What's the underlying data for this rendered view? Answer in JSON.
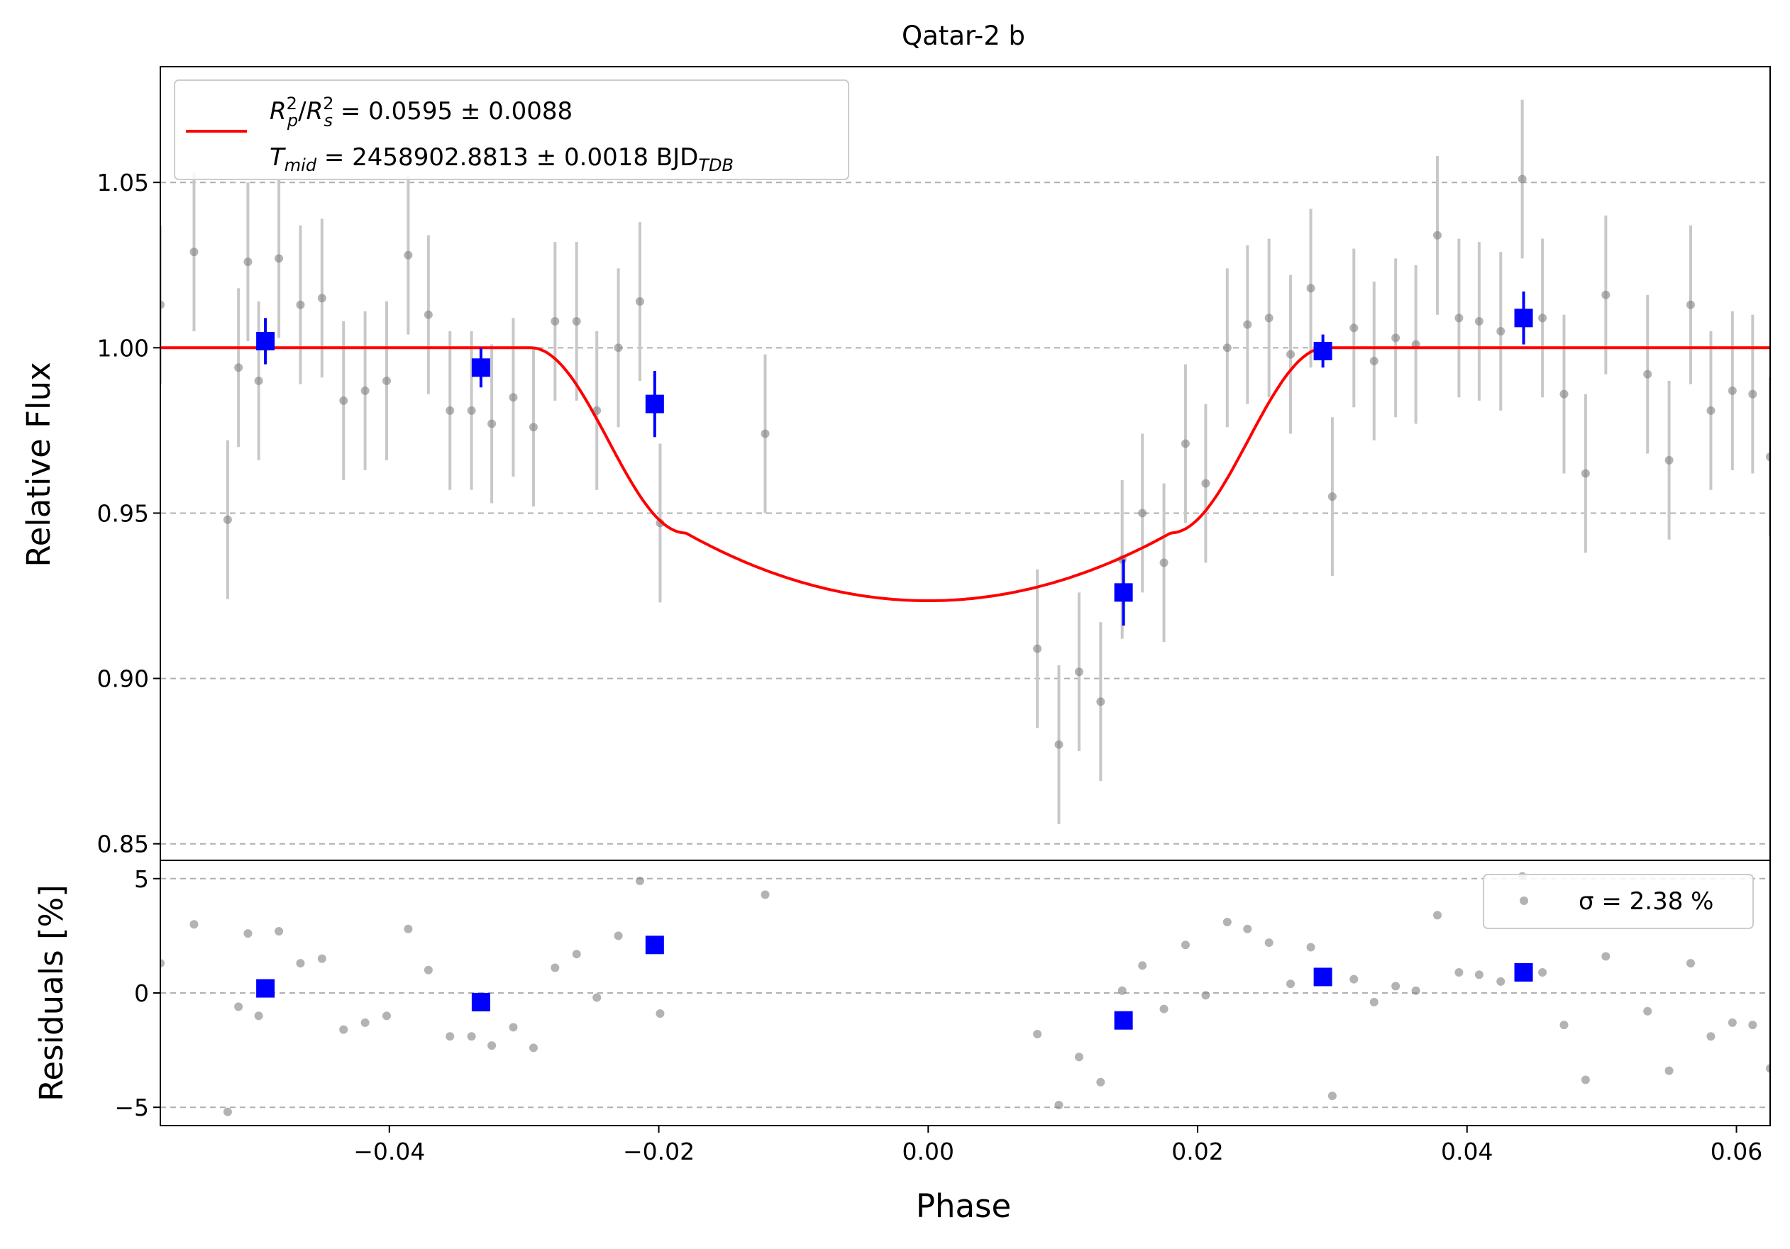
{
  "chart_data": {
    "type": "scatter",
    "title": "Qatar-2 b",
    "xlabel": "Phase",
    "xlim": [
      -0.057,
      0.0625
    ],
    "x_ticks": [
      -0.04,
      -0.02,
      0.0,
      0.02,
      0.04,
      0.06
    ],
    "x_tick_labels": [
      "−0.04",
      "−0.02",
      "0.00",
      "0.02",
      "0.04",
      "0.06"
    ],
    "grid": "horizontal dashed",
    "colors": {
      "raw": "#808080",
      "raw_err": "#c8c8c8",
      "binned": "#0000ff",
      "model": "#ff0000",
      "grid": "#b0b0b0"
    },
    "top_panel": {
      "ylabel": "Relative Flux",
      "ylim": [
        0.845,
        1.085
      ],
      "y_ticks": [
        0.85,
        0.9,
        0.95,
        1.0,
        1.05
      ],
      "y_tick_labels": [
        "0.85",
        "0.90",
        "0.95",
        "1.00",
        "1.05"
      ],
      "legend": {
        "position": "upper-left",
        "line1_main": "R²p/R²s = 0.0595 ± 0.0088",
        "line2_main": "Tmid = 2458902.8813 ± 0.0018 BJD",
        "line2_sub": "TDB"
      },
      "model": {
        "name": "transit model",
        "depth": 0.0595,
        "t1": -0.0295,
        "t2": -0.018,
        "t3": 0.018,
        "t4": 0.0295,
        "bottom": 0.9235
      },
      "raw_points": [
        {
          "x": -0.057,
          "y": 1.013,
          "err": 0.024
        },
        {
          "x": -0.0545,
          "y": 1.029,
          "err": 0.024
        },
        {
          "x": -0.052,
          "y": 0.948,
          "err": 0.024
        },
        {
          "x": -0.0512,
          "y": 0.994,
          "err": 0.024
        },
        {
          "x": -0.0505,
          "y": 1.026,
          "err": 0.024
        },
        {
          "x": -0.0497,
          "y": 0.99,
          "err": 0.024
        },
        {
          "x": -0.0482,
          "y": 1.027,
          "err": 0.024
        },
        {
          "x": -0.0466,
          "y": 1.013,
          "err": 0.024
        },
        {
          "x": -0.045,
          "y": 1.015,
          "err": 0.024
        },
        {
          "x": -0.0434,
          "y": 0.984,
          "err": 0.024
        },
        {
          "x": -0.0418,
          "y": 0.987,
          "err": 0.024
        },
        {
          "x": -0.0402,
          "y": 0.99,
          "err": 0.024
        },
        {
          "x": -0.0386,
          "y": 1.028,
          "err": 0.024
        },
        {
          "x": -0.0371,
          "y": 1.01,
          "err": 0.024
        },
        {
          "x": -0.0355,
          "y": 0.981,
          "err": 0.024
        },
        {
          "x": -0.0339,
          "y": 0.981,
          "err": 0.024
        },
        {
          "x": -0.0324,
          "y": 0.977,
          "err": 0.024
        },
        {
          "x": -0.0308,
          "y": 0.985,
          "err": 0.024
        },
        {
          "x": -0.0293,
          "y": 0.976,
          "err": 0.024
        },
        {
          "x": -0.0277,
          "y": 1.008,
          "err": 0.024
        },
        {
          "x": -0.0261,
          "y": 1.008,
          "err": 0.024
        },
        {
          "x": -0.0246,
          "y": 0.981,
          "err": 0.024
        },
        {
          "x": -0.023,
          "y": 1.0,
          "err": 0.024
        },
        {
          "x": -0.0214,
          "y": 1.014,
          "err": 0.024
        },
        {
          "x": -0.0199,
          "y": 0.947,
          "err": 0.024
        },
        {
          "x": -0.0121,
          "y": 0.974,
          "err": 0.024
        },
        {
          "x": 0.0081,
          "y": 0.909,
          "err": 0.024
        },
        {
          "x": 0.0097,
          "y": 0.88,
          "err": 0.024
        },
        {
          "x": 0.0112,
          "y": 0.902,
          "err": 0.024
        },
        {
          "x": 0.0128,
          "y": 0.893,
          "err": 0.024
        },
        {
          "x": 0.0144,
          "y": 0.936,
          "err": 0.024
        },
        {
          "x": 0.0159,
          "y": 0.95,
          "err": 0.024
        },
        {
          "x": 0.0175,
          "y": 0.935,
          "err": 0.024
        },
        {
          "x": 0.0191,
          "y": 0.971,
          "err": 0.024
        },
        {
          "x": 0.0206,
          "y": 0.959,
          "err": 0.024
        },
        {
          "x": 0.0222,
          "y": 1.0,
          "err": 0.024
        },
        {
          "x": 0.0237,
          "y": 1.007,
          "err": 0.024
        },
        {
          "x": 0.0253,
          "y": 1.009,
          "err": 0.024
        },
        {
          "x": 0.0269,
          "y": 0.998,
          "err": 0.024
        },
        {
          "x": 0.0284,
          "y": 1.018,
          "err": 0.024
        },
        {
          "x": 0.03,
          "y": 0.955,
          "err": 0.024
        },
        {
          "x": 0.0316,
          "y": 1.006,
          "err": 0.024
        },
        {
          "x": 0.0331,
          "y": 0.996,
          "err": 0.024
        },
        {
          "x": 0.0347,
          "y": 1.003,
          "err": 0.024
        },
        {
          "x": 0.0362,
          "y": 1.001,
          "err": 0.024
        },
        {
          "x": 0.0378,
          "y": 1.034,
          "err": 0.024
        },
        {
          "x": 0.0394,
          "y": 1.009,
          "err": 0.024
        },
        {
          "x": 0.0409,
          "y": 1.008,
          "err": 0.024
        },
        {
          "x": 0.0425,
          "y": 1.005,
          "err": 0.024
        },
        {
          "x": 0.0441,
          "y": 1.051,
          "err": 0.024
        },
        {
          "x": 0.0456,
          "y": 1.009,
          "err": 0.024
        },
        {
          "x": 0.0472,
          "y": 0.986,
          "err": 0.024
        },
        {
          "x": 0.0488,
          "y": 0.962,
          "err": 0.024
        },
        {
          "x": 0.0503,
          "y": 1.016,
          "err": 0.024
        },
        {
          "x": 0.0534,
          "y": 0.992,
          "err": 0.024
        },
        {
          "x": 0.055,
          "y": 0.966,
          "err": 0.024
        },
        {
          "x": 0.0566,
          "y": 1.013,
          "err": 0.024
        },
        {
          "x": 0.0581,
          "y": 0.981,
          "err": 0.024
        },
        {
          "x": 0.0597,
          "y": 0.987,
          "err": 0.024
        },
        {
          "x": 0.0612,
          "y": 0.986,
          "err": 0.024
        },
        {
          "x": 0.0625,
          "y": 0.967,
          "err": 0.024
        }
      ],
      "binned_points": [
        {
          "x": -0.0492,
          "y": 1.002,
          "err": 0.007
        },
        {
          "x": -0.0332,
          "y": 0.994,
          "err": 0.006
        },
        {
          "x": -0.0203,
          "y": 0.983,
          "err": 0.01
        },
        {
          "x": 0.0145,
          "y": 0.926,
          "err": 0.01
        },
        {
          "x": 0.0293,
          "y": 0.999,
          "err": 0.005
        },
        {
          "x": 0.0442,
          "y": 1.009,
          "err": 0.008
        }
      ]
    },
    "bottom_panel": {
      "ylabel": "Residuals [%]",
      "ylim": [
        -5.8,
        5.8
      ],
      "y_ticks": [
        -5,
        0,
        5
      ],
      "y_tick_labels": [
        "−5",
        "0",
        "5"
      ],
      "legend": {
        "position": "upper-right",
        "label": "σ = 2.38 %"
      },
      "raw_points": [
        {
          "x": -0.057,
          "y": 1.3
        },
        {
          "x": -0.0545,
          "y": 3.0
        },
        {
          "x": -0.052,
          "y": -5.2
        },
        {
          "x": -0.0512,
          "y": -0.6
        },
        {
          "x": -0.0505,
          "y": 2.6
        },
        {
          "x": -0.0497,
          "y": -1.0
        },
        {
          "x": -0.0482,
          "y": 2.7
        },
        {
          "x": -0.0466,
          "y": 1.3
        },
        {
          "x": -0.045,
          "y": 1.5
        },
        {
          "x": -0.0434,
          "y": -1.6
        },
        {
          "x": -0.0418,
          "y": -1.3
        },
        {
          "x": -0.0402,
          "y": -1.0
        },
        {
          "x": -0.0386,
          "y": 2.8
        },
        {
          "x": -0.0371,
          "y": 1.0
        },
        {
          "x": -0.0355,
          "y": -1.9
        },
        {
          "x": -0.0339,
          "y": -1.9
        },
        {
          "x": -0.0324,
          "y": -2.3
        },
        {
          "x": -0.0308,
          "y": -1.5
        },
        {
          "x": -0.0293,
          "y": -2.4
        },
        {
          "x": -0.0277,
          "y": 1.1
        },
        {
          "x": -0.0261,
          "y": 1.7
        },
        {
          "x": -0.0246,
          "y": -0.2
        },
        {
          "x": -0.023,
          "y": 2.5
        },
        {
          "x": -0.0214,
          "y": 4.9
        },
        {
          "x": -0.0199,
          "y": -0.9
        },
        {
          "x": -0.0121,
          "y": 4.3
        },
        {
          "x": 0.0081,
          "y": -1.8
        },
        {
          "x": 0.0097,
          "y": -4.9
        },
        {
          "x": 0.0112,
          "y": -2.8
        },
        {
          "x": 0.0128,
          "y": -3.9
        },
        {
          "x": 0.0144,
          "y": 0.1
        },
        {
          "x": 0.0159,
          "y": 1.2
        },
        {
          "x": 0.0175,
          "y": -0.7
        },
        {
          "x": 0.0191,
          "y": 2.1
        },
        {
          "x": 0.0206,
          "y": -0.1
        },
        {
          "x": 0.0222,
          "y": 3.1
        },
        {
          "x": 0.0237,
          "y": 2.8
        },
        {
          "x": 0.0253,
          "y": 2.2
        },
        {
          "x": 0.0269,
          "y": 0.4
        },
        {
          "x": 0.0284,
          "y": 2.0
        },
        {
          "x": 0.03,
          "y": -4.5
        },
        {
          "x": 0.0316,
          "y": 0.6
        },
        {
          "x": 0.0331,
          "y": -0.4
        },
        {
          "x": 0.0347,
          "y": 0.3
        },
        {
          "x": 0.0362,
          "y": 0.1
        },
        {
          "x": 0.0378,
          "y": 3.4
        },
        {
          "x": 0.0394,
          "y": 0.9
        },
        {
          "x": 0.0409,
          "y": 0.8
        },
        {
          "x": 0.0425,
          "y": 0.5
        },
        {
          "x": 0.0441,
          "y": 5.1
        },
        {
          "x": 0.0456,
          "y": 0.9
        },
        {
          "x": 0.0472,
          "y": -1.4
        },
        {
          "x": 0.0488,
          "y": -3.8
        },
        {
          "x": 0.0503,
          "y": 1.6
        },
        {
          "x": 0.0534,
          "y": -0.8
        },
        {
          "x": 0.055,
          "y": -3.4
        },
        {
          "x": 0.0566,
          "y": 1.3
        },
        {
          "x": 0.0581,
          "y": -1.9
        },
        {
          "x": 0.0597,
          "y": -1.3
        },
        {
          "x": 0.0612,
          "y": -1.4
        },
        {
          "x": 0.0625,
          "y": -3.3
        }
      ],
      "binned_points": [
        {
          "x": -0.0492,
          "y": 0.2
        },
        {
          "x": -0.0332,
          "y": -0.4
        },
        {
          "x": -0.0203,
          "y": 2.1
        },
        {
          "x": 0.0145,
          "y": -1.2
        },
        {
          "x": 0.0293,
          "y": 0.7
        },
        {
          "x": 0.0442,
          "y": 0.9
        }
      ]
    }
  }
}
